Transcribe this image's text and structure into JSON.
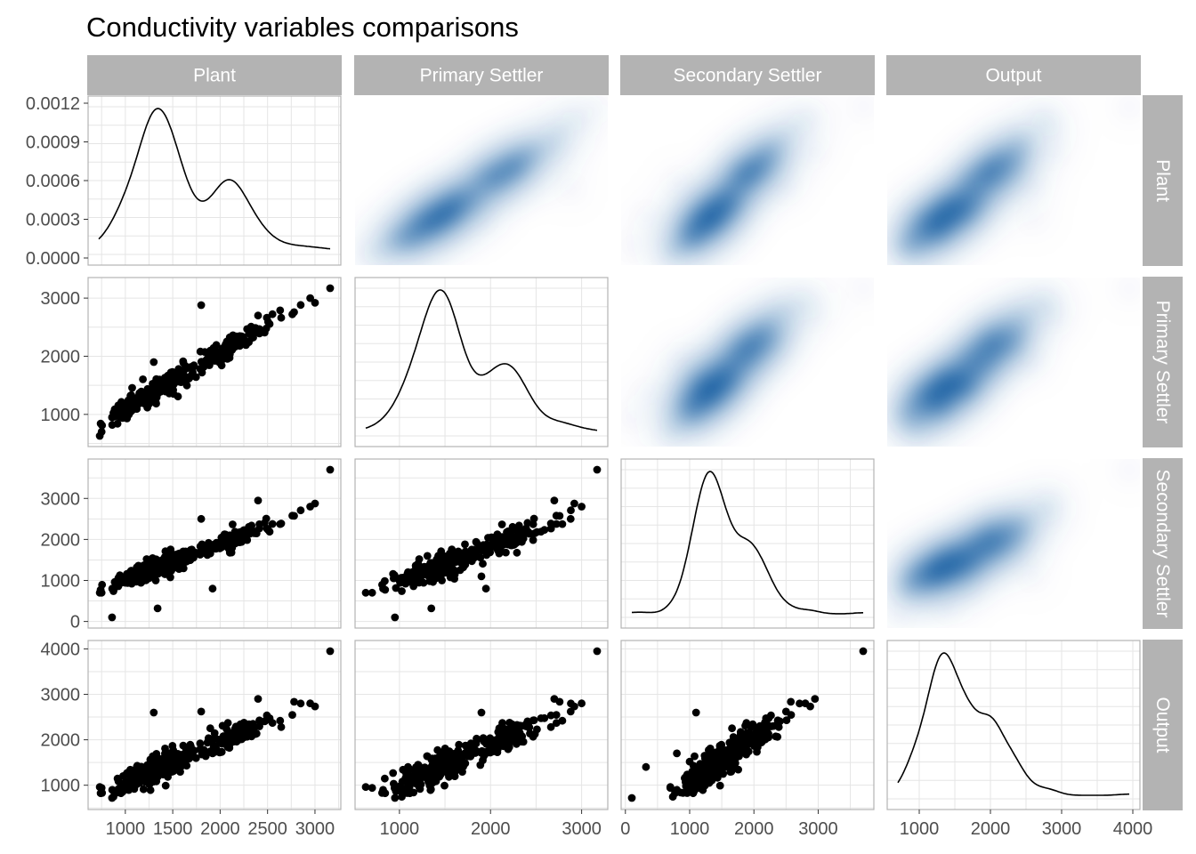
{
  "chart_data": {
    "type": "pairs",
    "title": "Conductivity variables comparisons",
    "variables": [
      "Plant",
      "Primary Settler",
      "Secondary Settler",
      "Output"
    ],
    "colors": {
      "strip": "#b3b3b3",
      "points": "#000000",
      "density_fill": "#08519c",
      "grid": "#e5e5e5",
      "panel_border": "#b3b3b3"
    },
    "grid": true,
    "x_ticks": [
      {
        "variable": "Plant",
        "labels": [
          "1000",
          "1500",
          "2000",
          "2500",
          "3000"
        ]
      },
      {
        "variable": "Primary Settler",
        "labels": [
          "1000",
          "2000",
          "3000"
        ]
      },
      {
        "variable": "Secondary Settler",
        "labels": [
          "0",
          "1000",
          "2000",
          "3000"
        ]
      },
      {
        "variable": "Output",
        "labels": [
          "1000",
          "2000",
          "3000",
          "4000"
        ]
      }
    ],
    "y_ticks": [
      {
        "variable": "Plant",
        "labels": [
          "0.0000",
          "0.0003",
          "0.0006",
          "0.0009",
          "0.0012"
        ]
      },
      {
        "variable": "Primary Settler",
        "labels": [
          "1000",
          "2000",
          "3000"
        ]
      },
      {
        "variable": "Secondary Settler",
        "labels": [
          "0",
          "1000",
          "2000",
          "3000"
        ]
      },
      {
        "variable": "Output",
        "labels": [
          "1000",
          "2000",
          "3000",
          "4000"
        ]
      }
    ],
    "ranges": {
      "Plant": [
        720,
        3160
      ],
      "Primary Settler": [
        630,
        3170
      ],
      "Secondary Settler": [
        100,
        3700
      ],
      "Output": [
        700,
        3950
      ]
    },
    "diagonal": "density",
    "upper": "2d-density",
    "lower": "scatter",
    "density_summary": [
      {
        "variable": "Plant",
        "mode": 1320,
        "peak_density": 0.00119,
        "secondary_bump": 2100
      },
      {
        "variable": "Primary Settler",
        "mode": 1380,
        "secondary_bump": 2100
      },
      {
        "variable": "Secondary Settler",
        "mode": 1420,
        "secondary_bump": 2150
      },
      {
        "variable": "Output",
        "mode": 1390,
        "secondary_bump": 2200
      }
    ]
  }
}
